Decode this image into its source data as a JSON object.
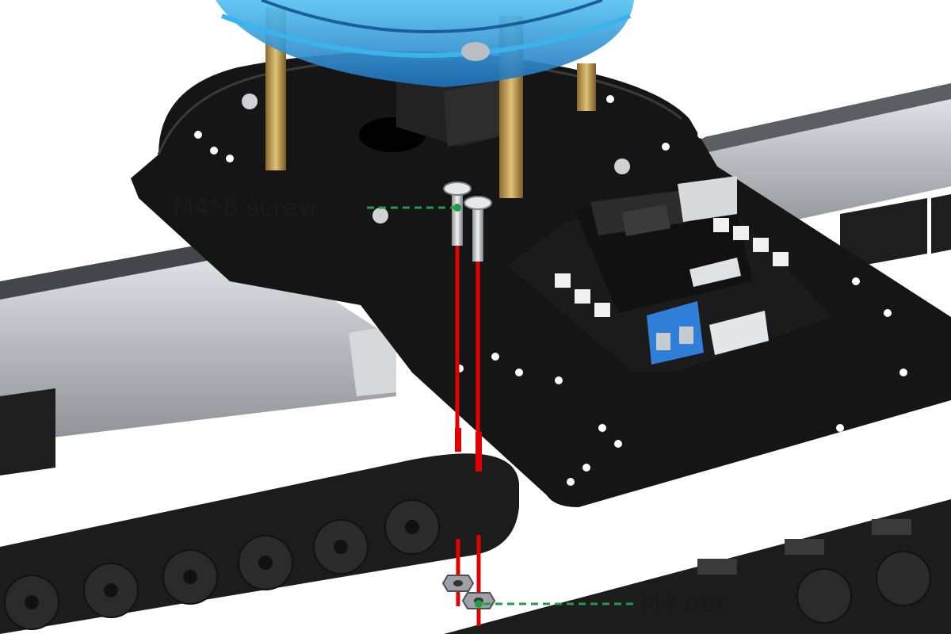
{
  "labels": {
    "screw": "M4*8 screw",
    "nut": "M4 nut"
  },
  "colors": {
    "callout_line": "#1f9d4a",
    "guide_line": "#e30000",
    "plate": "#141414",
    "rail": "#c9cdd2",
    "chain": "#1c1c1c",
    "pcb": "#1b1b1b",
    "terminal": "#2f7fd8",
    "turntable": "#2a8fd6"
  },
  "icons": {
    "screw": "m4-screw-icon",
    "nut": "m4-nut-icon"
  }
}
